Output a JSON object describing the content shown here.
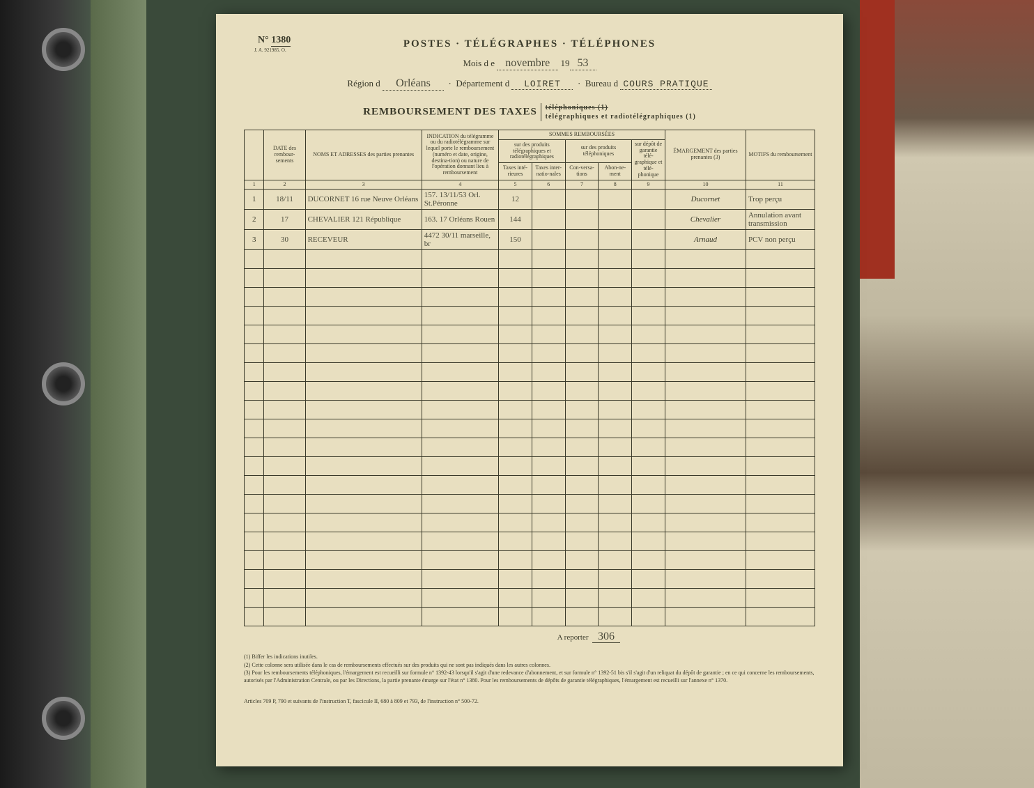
{
  "form": {
    "number_prefix": "N°",
    "number": "1380",
    "sub_ref": "J. A. 921985.  O.",
    "agency_title": "POSTES · TÉLÉGRAPHES · TÉLÉPHONES",
    "month_label": "Mois d e",
    "month_value": "novembre",
    "year_prefix": "19",
    "year_value": "53",
    "region_label": "Région d",
    "region_value": "Orléans",
    "dept_label": "Département d",
    "dept_value": "LOIRET",
    "bureau_label": "Bureau d",
    "bureau_value": "COURS PRATIQUE",
    "section_title": "REMBOURSEMENT DES TAXES",
    "option_struck": "téléphoniques (1)",
    "option_kept": "télégraphiques et radiotélégraphiques (1)"
  },
  "columns": {
    "group_sommes": "SOMMES REMBOURSÉES",
    "num": "",
    "date": "DATE des rembour-sements",
    "noms": "NOMS ET ADRESSES des parties prenantes",
    "indication": "INDICATION du télégramme ou du radiotélégramme sur lequel porte le remboursement (numéro et date, origine, destina-tion) ou nature de l'opération donnant lieu à remboursement",
    "sub_prod_teleg": "sur des produits télégraphiques et radiotélégraphiques",
    "sub_prod_teleph": "sur des produits téléphoniques",
    "taxes_inte": "Taxes inté-rieures",
    "taxes_inter": "Taxes inter-natio-nales",
    "conv": "Con-versa-tions",
    "abon": "Abon-ne-ment",
    "depot": "sur dépôt de garantie télé-graphique et télé-phonique",
    "emarg": "ÉMARGEMENT des parties prenantes (3)",
    "motifs": "MOTIFS du remboursement",
    "idx": [
      "1",
      "2",
      "3",
      "4",
      "5",
      "6",
      "7",
      "8",
      "9",
      "10",
      "11"
    ]
  },
  "rows": [
    {
      "n": "1",
      "date": "18/11",
      "nom": "DUCORNET 16 rue Neuve Orléans",
      "indic": "157. 13/11/53 Orl. St.Péronne",
      "t_int": "12",
      "t_intl": "",
      "conv": "",
      "abon": "",
      "depot": "",
      "emarg": "Ducornet",
      "motif": "Trop perçu"
    },
    {
      "n": "2",
      "date": "17",
      "nom": "CHEVALIER 121 République",
      "indic": "163. 17 Orléans Rouen",
      "t_int": "144",
      "t_intl": "",
      "conv": "",
      "abon": "",
      "depot": "",
      "emarg": "Chevalier",
      "motif": "Annulation avant transmission"
    },
    {
      "n": "3",
      "date": "30",
      "nom": "RECEVEUR",
      "indic": "4472 30/11 marseille, br",
      "t_int": "150",
      "t_intl": "",
      "conv": "",
      "abon": "",
      "depot": "",
      "emarg": "Arnaud",
      "motif": "PCV non perçu"
    }
  ],
  "report": {
    "label": "A reporter",
    "value": "306"
  },
  "footnotes": {
    "f1": "(1) Biffer les indications inutiles.",
    "f2": "(2) Cette colonne sera utilisée dans le cas de remboursements effectués sur des produits qui ne sont pas indiqués dans les autres colonnes.",
    "f3": "(3) Pour les remboursements téléphoniques, l'émargement est recueilli sur formule n° 1392-43 lorsqu'il s'agit d'une redevance d'abonnement, et sur formule n° 1392-51 bis s'il s'agit d'un reliquat du dépôt de garantie ; en ce qui concerne les remboursements, autorisés par l'Administration Centrale, ou par les Directions, la partie prenante émarge sur l'état n° 1380. Pour les remboursements de dépôts de garantie télégraphiques, l'émargement est recueilli sur l'annexe n° 1370."
  },
  "footer_ref": "Articles 709 P, 790 et suivants de l'instruction T, fascicule II, 680 à 809 et 793, de l'instruction n° 500-72.",
  "colors": {
    "paper": "#e8dfc0",
    "ink": "#3a3a2a",
    "background": "#3a4a3a"
  }
}
